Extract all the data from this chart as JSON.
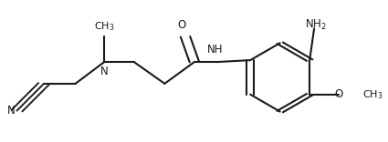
{
  "background": "#ffffff",
  "line_color": "#1a1a1a",
  "line_width": 1.5,
  "font_size": 8.5,
  "figsize": [
    4.25,
    1.56
  ],
  "dpi": 100,
  "xlim": [
    0.0,
    1.0
  ],
  "ylim": [
    0.0,
    1.0
  ]
}
